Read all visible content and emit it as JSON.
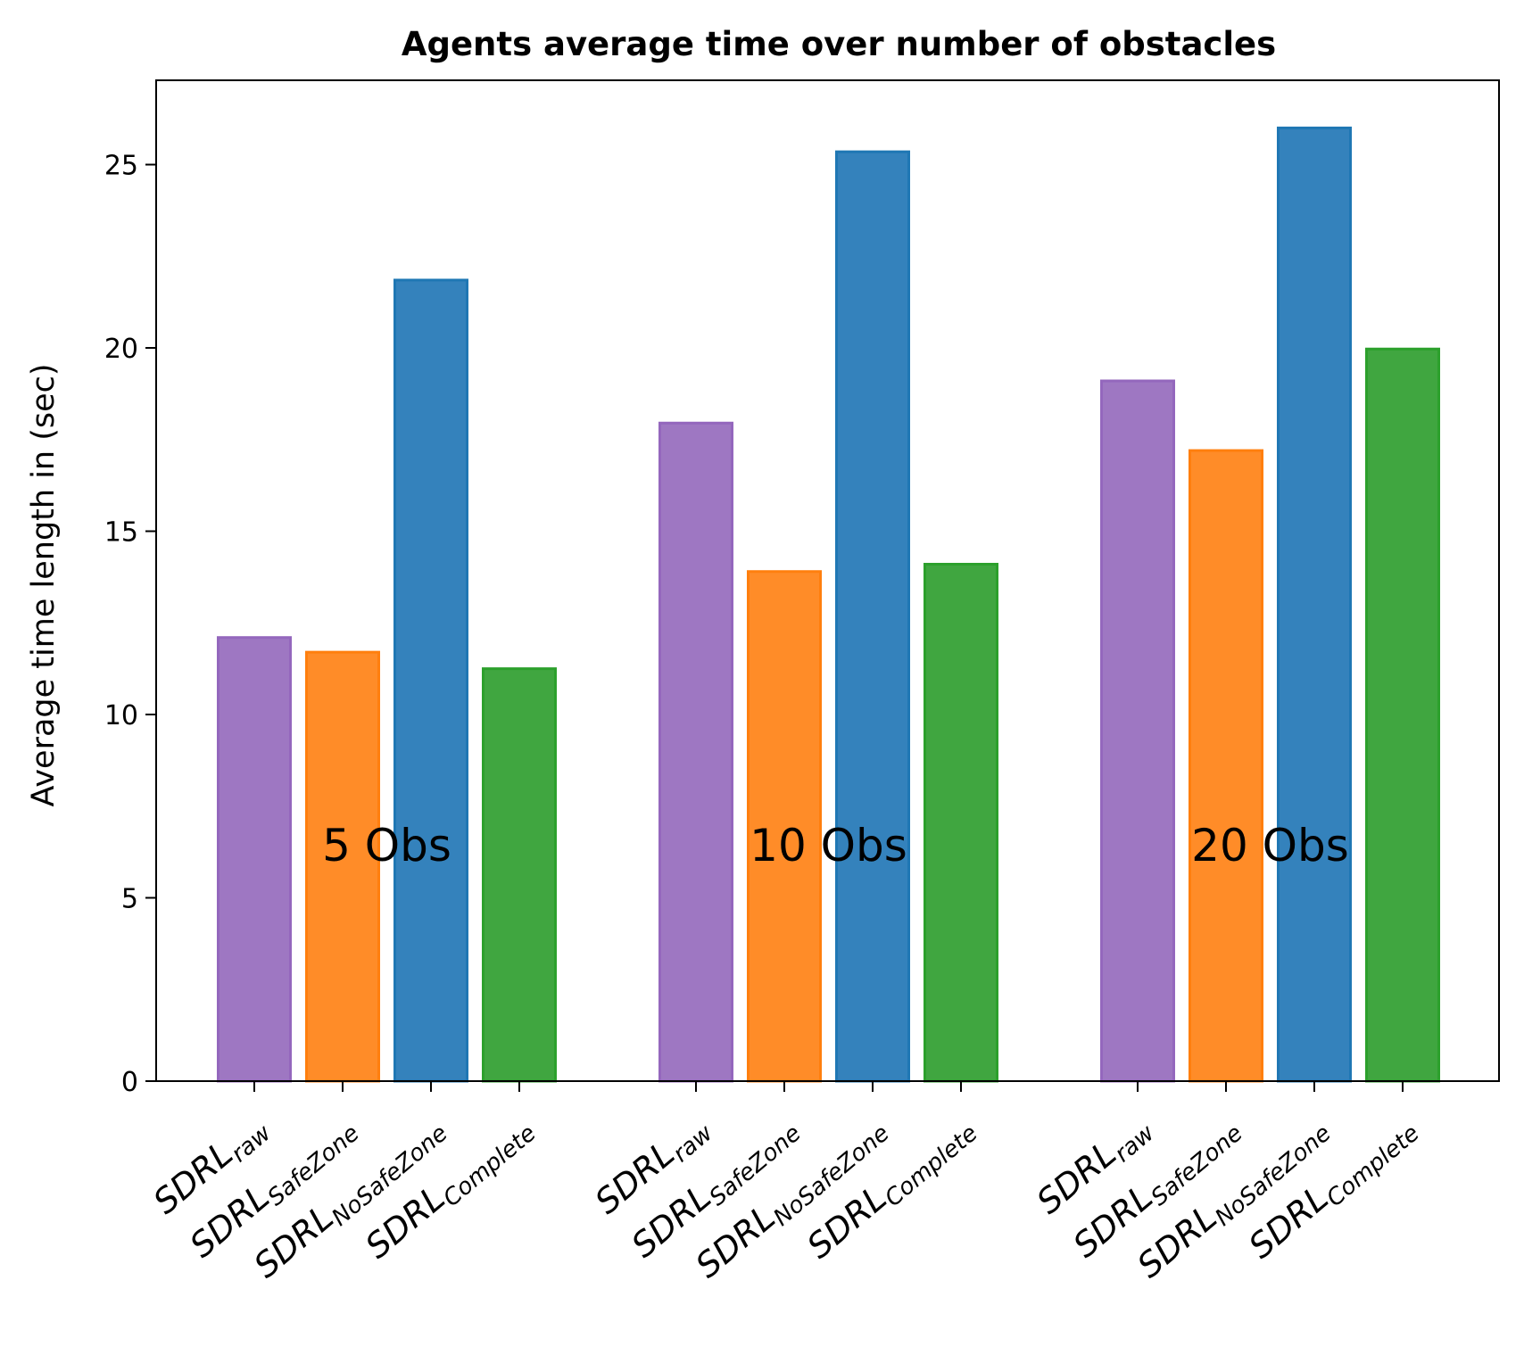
{
  "chart_data": {
    "type": "bar",
    "title": "Agents average time over number of obstacles",
    "xlabel": "",
    "ylabel": "Average time length in (sec)",
    "ylim": [
      0,
      27.3
    ],
    "yticks": [
      0,
      5,
      10,
      15,
      20,
      25
    ],
    "grid": false,
    "legend": "none",
    "groups": [
      "5 Obs",
      "10 Obs",
      "20 Obs"
    ],
    "categories": [
      {
        "base": "SDRL",
        "sub": "raw"
      },
      {
        "base": "SDRL",
        "sub": "SafeZone"
      },
      {
        "base": "SDRL",
        "sub": "NoSafeZone"
      },
      {
        "base": "SDRL",
        "sub": "Complete"
      }
    ],
    "colors": [
      "#9e77c2",
      "#ff8c28",
      "#3482bc",
      "#40a640"
    ],
    "edge_colors": [
      "#9467bd",
      "#ff7f0e",
      "#1f77b4",
      "#2ca02c"
    ],
    "values": [
      [
        12.1,
        11.7,
        21.85,
        11.25
      ],
      [
        17.95,
        13.9,
        25.35,
        14.1
      ],
      [
        19.1,
        17.2,
        26.0,
        19.97
      ]
    ]
  }
}
